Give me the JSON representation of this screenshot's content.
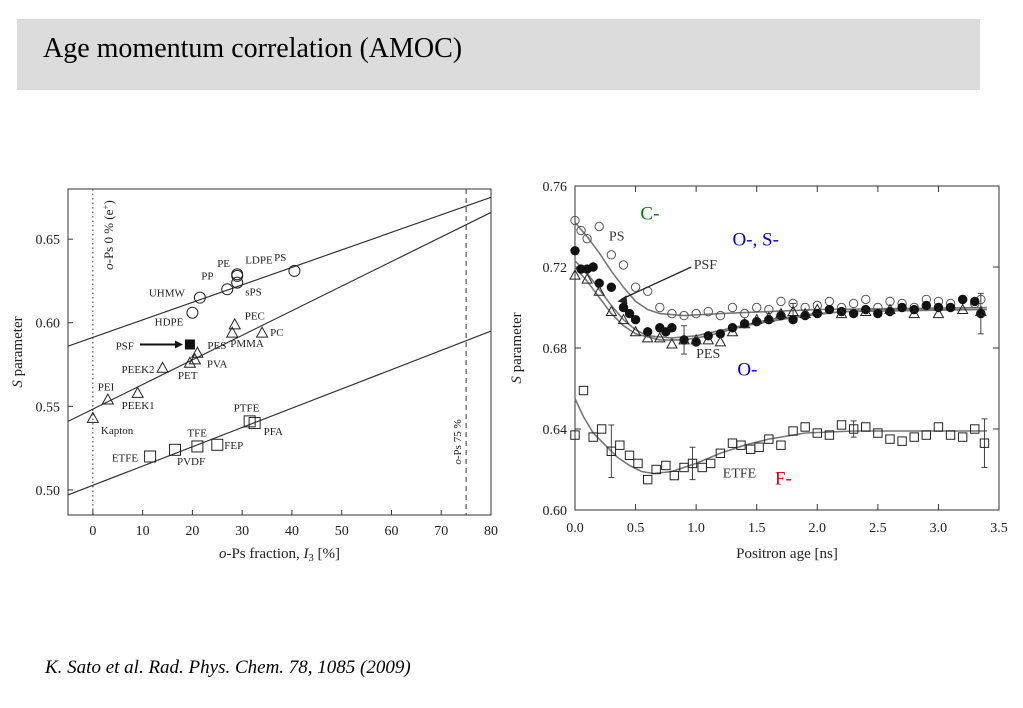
{
  "title": "Age momentum correlation (AMOC)",
  "citation": "K. Sato et al. Rad. Phys. Chem. 78, 1085 (2009)",
  "colors": {
    "background": "#ffffff",
    "title_bar": "#dcdcdc",
    "c_label": "#008000",
    "o_label": "#0000cc",
    "f_label": "#dd0000"
  },
  "chart_data": [
    {
      "type": "scatter",
      "xlabel_parts": [
        "o",
        "-Ps fraction, ",
        "I",
        "3",
        " [%]"
      ],
      "ylabel_parts": [
        "S",
        " parameter"
      ],
      "xlim": [
        -5,
        80
      ],
      "ylim": [
        0.485,
        0.68
      ],
      "xticks": [
        "0",
        "10",
        "20",
        "30",
        "40",
        "50",
        "60",
        "70",
        "80"
      ],
      "yticks": [
        "0.50",
        "0.55",
        "0.60",
        "0.65"
      ],
      "vlines": [
        {
          "x": 0,
          "label": "o-Ps 0 % (e+)",
          "label_parts": [
            "o",
            "-Ps 0 % (e",
            "+",
            ")"
          ]
        },
        {
          "x": 75,
          "label": "o-Ps 75 %",
          "label_parts": [
            "o",
            "-Ps 75 %"
          ]
        }
      ],
      "fit_lines": [
        {
          "x": [
            -5,
            80
          ],
          "y": [
            0.586,
            0.675
          ]
        },
        {
          "x": [
            -5,
            80
          ],
          "y": [
            0.541,
            0.666
          ]
        },
        {
          "x": [
            -5,
            80
          ],
          "y": [
            0.497,
            0.595
          ]
        }
      ],
      "points": [
        {
          "label": "Kapton",
          "x": 0,
          "y": 0.543,
          "marker": "triangle"
        },
        {
          "label": "PEI",
          "x": 3,
          "y": 0.554,
          "marker": "triangle"
        },
        {
          "label": "PEEK1",
          "x": 9,
          "y": 0.558,
          "marker": "triangle"
        },
        {
          "label": "PEEK2",
          "x": 14,
          "y": 0.573,
          "marker": "triangle"
        },
        {
          "label": "PSF",
          "x": 19.5,
          "y": 0.587,
          "marker": "filled-square"
        },
        {
          "label": "PES",
          "x": 21,
          "y": 0.582,
          "marker": "triangle"
        },
        {
          "label": "PET",
          "x": 19.5,
          "y": 0.576,
          "marker": "triangle"
        },
        {
          "label": "PVA",
          "x": 20.5,
          "y": 0.578,
          "marker": "triangle"
        },
        {
          "label": "PEC",
          "x": 28.5,
          "y": 0.599,
          "marker": "triangle"
        },
        {
          "label": "PMMA",
          "x": 28,
          "y": 0.594,
          "marker": "triangle"
        },
        {
          "label": "PC",
          "x": 34,
          "y": 0.594,
          "marker": "triangle"
        },
        {
          "label": "HDPE",
          "x": 20,
          "y": 0.606,
          "marker": "circle"
        },
        {
          "label": "UHMW",
          "x": 21.5,
          "y": 0.615,
          "marker": "circle"
        },
        {
          "label": "PP",
          "x": 27,
          "y": 0.62,
          "marker": "circle"
        },
        {
          "label": "PE",
          "x": 29,
          "y": 0.628,
          "marker": "circle"
        },
        {
          "label": "sPS",
          "x": 29,
          "y": 0.624,
          "marker": "circle"
        },
        {
          "label": "LDPE",
          "x": 29,
          "y": 0.629,
          "marker": "circle"
        },
        {
          "label": "PS",
          "x": 40.5,
          "y": 0.631,
          "marker": "circle"
        },
        {
          "label": "ETFE",
          "x": 11.5,
          "y": 0.52,
          "marker": "square"
        },
        {
          "label": "PVDF",
          "x": 16.5,
          "y": 0.524,
          "marker": "square"
        },
        {
          "label": "TFE",
          "x": 21,
          "y": 0.526,
          "marker": "square"
        },
        {
          "label": "FEP",
          "x": 25,
          "y": 0.527,
          "marker": "square"
        },
        {
          "label": "PTFE",
          "x": 31.5,
          "y": 0.541,
          "marker": "square"
        },
        {
          "label": "PFA",
          "x": 32.5,
          "y": 0.54,
          "marker": "square"
        }
      ]
    },
    {
      "type": "scatter",
      "xlabel": "Positron age [ns]",
      "ylabel_parts": [
        "S",
        " parameter"
      ],
      "xlim": [
        0,
        3.5
      ],
      "ylim": [
        0.6,
        0.76
      ],
      "xticks": [
        "0.0",
        "0.5",
        "1.0",
        "1.5",
        "2.0",
        "2.5",
        "3.0",
        "3.5"
      ],
      "yticks": [
        "0.60",
        "0.64",
        "0.68",
        "0.72",
        "0.76"
      ],
      "series": [
        {
          "name": "PS",
          "marker": "circle",
          "x": [
            0.0,
            0.05,
            0.1,
            0.2,
            0.3,
            0.4,
            0.5,
            0.6,
            0.7,
            0.8,
            0.9,
            1.0,
            1.1,
            1.2,
            1.3,
            1.4,
            1.5,
            1.6,
            1.7,
            1.8,
            1.9,
            2.0,
            2.1,
            2.2,
            2.3,
            2.4,
            2.5,
            2.6,
            2.7,
            2.8,
            2.9,
            3.0,
            3.1,
            3.2,
            3.3,
            3.35
          ],
          "y": [
            0.743,
            0.738,
            0.734,
            0.74,
            0.726,
            0.721,
            0.71,
            0.708,
            0.7,
            0.697,
            0.696,
            0.697,
            0.698,
            0.696,
            0.7,
            0.697,
            0.7,
            0.699,
            0.703,
            0.702,
            0.7,
            0.701,
            0.703,
            0.7,
            0.702,
            0.704,
            0.7,
            0.703,
            0.702,
            0.7,
            0.704,
            0.703,
            0.702,
            0.704,
            0.702,
            0.704
          ],
          "fit": [
            [
              0.0,
              0.742
            ],
            [
              0.1,
              0.735
            ],
            [
              0.2,
              0.727
            ],
            [
              0.3,
              0.718
            ],
            [
              0.4,
              0.71
            ],
            [
              0.5,
              0.703
            ],
            [
              0.6,
              0.699
            ],
            [
              0.7,
              0.697
            ],
            [
              0.9,
              0.696
            ],
            [
              1.2,
              0.697
            ],
            [
              1.6,
              0.698
            ],
            [
              2.0,
              0.699
            ],
            [
              3.4,
              0.7
            ]
          ]
        },
        {
          "name": "PSF",
          "marker": "filled-circle",
          "x": [
            0.0,
            0.05,
            0.1,
            0.15,
            0.2,
            0.3,
            0.4,
            0.45,
            0.5,
            0.6,
            0.7,
            0.75,
            0.8,
            0.9,
            1.0,
            1.1,
            1.2,
            1.3,
            1.4,
            1.5,
            1.6,
            1.7,
            1.8,
            1.9,
            2.0,
            2.1,
            2.2,
            2.3,
            2.4,
            2.5,
            2.6,
            2.7,
            2.8,
            2.9,
            3.0,
            3.1,
            3.2,
            3.3,
            3.35
          ],
          "y": [
            0.728,
            0.719,
            0.719,
            0.72,
            0.712,
            0.71,
            0.7,
            0.697,
            0.694,
            0.688,
            0.69,
            0.688,
            0.69,
            0.684,
            0.683,
            0.686,
            0.687,
            0.69,
            0.692,
            0.693,
            0.694,
            0.696,
            0.694,
            0.696,
            0.697,
            0.699,
            0.698,
            0.697,
            0.699,
            0.697,
            0.698,
            0.7,
            0.699,
            0.701,
            0.7,
            0.7,
            0.704,
            0.703,
            0.697
          ],
          "fit": [
            [
              0.0,
              0.723
            ],
            [
              0.1,
              0.717
            ],
            [
              0.2,
              0.709
            ],
            [
              0.3,
              0.701
            ],
            [
              0.4,
              0.694
            ],
            [
              0.5,
              0.689
            ],
            [
              0.6,
              0.686
            ],
            [
              0.8,
              0.685
            ],
            [
              1.0,
              0.686
            ],
            [
              1.3,
              0.69
            ],
            [
              1.6,
              0.694
            ],
            [
              2.0,
              0.697
            ],
            [
              2.5,
              0.699
            ],
            [
              3.4,
              0.699
            ]
          ]
        },
        {
          "name": "PES",
          "marker": "triangle",
          "x": [
            0.0,
            0.1,
            0.2,
            0.3,
            0.4,
            0.5,
            0.6,
            0.7,
            0.8,
            0.9,
            1.0,
            1.1,
            1.2,
            1.3,
            1.4,
            1.5,
            1.6,
            1.7,
            1.8,
            1.9,
            2.0,
            2.2,
            2.4,
            2.6,
            2.8,
            3.0,
            3.2,
            3.35
          ],
          "y": [
            0.716,
            0.714,
            0.708,
            0.698,
            0.694,
            0.688,
            0.685,
            0.685,
            0.682,
            0.684,
            0.684,
            0.684,
            0.683,
            0.688,
            0.692,
            0.694,
            0.695,
            0.697,
            0.698,
            0.697,
            0.699,
            0.697,
            0.698,
            0.699,
            0.697,
            0.697,
            0.699,
            0.698
          ],
          "fit": [
            [
              0.0,
              0.72
            ],
            [
              0.1,
              0.713
            ],
            [
              0.2,
              0.705
            ],
            [
              0.3,
              0.697
            ],
            [
              0.4,
              0.691
            ],
            [
              0.5,
              0.687
            ],
            [
              0.7,
              0.684
            ],
            [
              0.9,
              0.684
            ],
            [
              1.1,
              0.686
            ],
            [
              1.4,
              0.691
            ],
            [
              1.8,
              0.695
            ],
            [
              2.2,
              0.698
            ],
            [
              3.4,
              0.699
            ]
          ]
        },
        {
          "name": "ETFE",
          "marker": "square",
          "x": [
            0.0,
            0.07,
            0.15,
            0.22,
            0.3,
            0.37,
            0.45,
            0.52,
            0.6,
            0.67,
            0.75,
            0.82,
            0.9,
            0.97,
            1.05,
            1.12,
            1.2,
            1.3,
            1.37,
            1.45,
            1.52,
            1.6,
            1.7,
            1.8,
            1.9,
            2.0,
            2.1,
            2.2,
            2.3,
            2.4,
            2.5,
            2.6,
            2.7,
            2.8,
            2.9,
            3.0,
            3.1,
            3.2,
            3.3,
            3.38
          ],
          "y": [
            0.637,
            0.659,
            0.636,
            0.64,
            0.629,
            0.632,
            0.627,
            0.623,
            0.615,
            0.62,
            0.622,
            0.617,
            0.621,
            0.623,
            0.621,
            0.623,
            0.628,
            0.633,
            0.632,
            0.63,
            0.631,
            0.635,
            0.632,
            0.639,
            0.641,
            0.638,
            0.637,
            0.642,
            0.64,
            0.641,
            0.638,
            0.635,
            0.634,
            0.636,
            0.637,
            0.641,
            0.637,
            0.636,
            0.64,
            0.633
          ],
          "fit": [
            [
              0.0,
              0.655
            ],
            [
              0.07,
              0.646
            ],
            [
              0.15,
              0.638
            ],
            [
              0.25,
              0.632
            ],
            [
              0.35,
              0.626
            ],
            [
              0.45,
              0.622
            ],
            [
              0.55,
              0.619
            ],
            [
              0.65,
              0.618
            ],
            [
              0.8,
              0.619
            ],
            [
              1.0,
              0.623
            ],
            [
              1.2,
              0.628
            ],
            [
              1.4,
              0.632
            ],
            [
              1.6,
              0.635
            ],
            [
              1.9,
              0.638
            ],
            [
              2.3,
              0.639
            ],
            [
              3.4,
              0.639
            ]
          ]
        }
      ],
      "error_bars": [
        {
          "x": 0.3,
          "y": 0.629,
          "err": 0.013
        },
        {
          "x": 0.97,
          "y": 0.623,
          "err": 0.008
        },
        {
          "x": 2.3,
          "y": 0.64,
          "err": 0.004
        },
        {
          "x": 3.38,
          "y": 0.633,
          "err": 0.012
        },
        {
          "x": 0.9,
          "y": 0.684,
          "err": 0.007
        },
        {
          "x": 3.35,
          "y": 0.697,
          "err": 0.01
        },
        {
          "x": 1.8,
          "y": 0.698,
          "err": 0.004
        }
      ],
      "text_labels": [
        "PS",
        "PSF",
        "PES",
        "ETFE"
      ],
      "element_labels": [
        {
          "text": "C-",
          "color": "#008000"
        },
        {
          "text": "O-, S-",
          "color": "#0000cc"
        },
        {
          "text": "O-",
          "color": "#0000cc"
        },
        {
          "text": "F-",
          "color": "#dd0000"
        }
      ]
    }
  ]
}
